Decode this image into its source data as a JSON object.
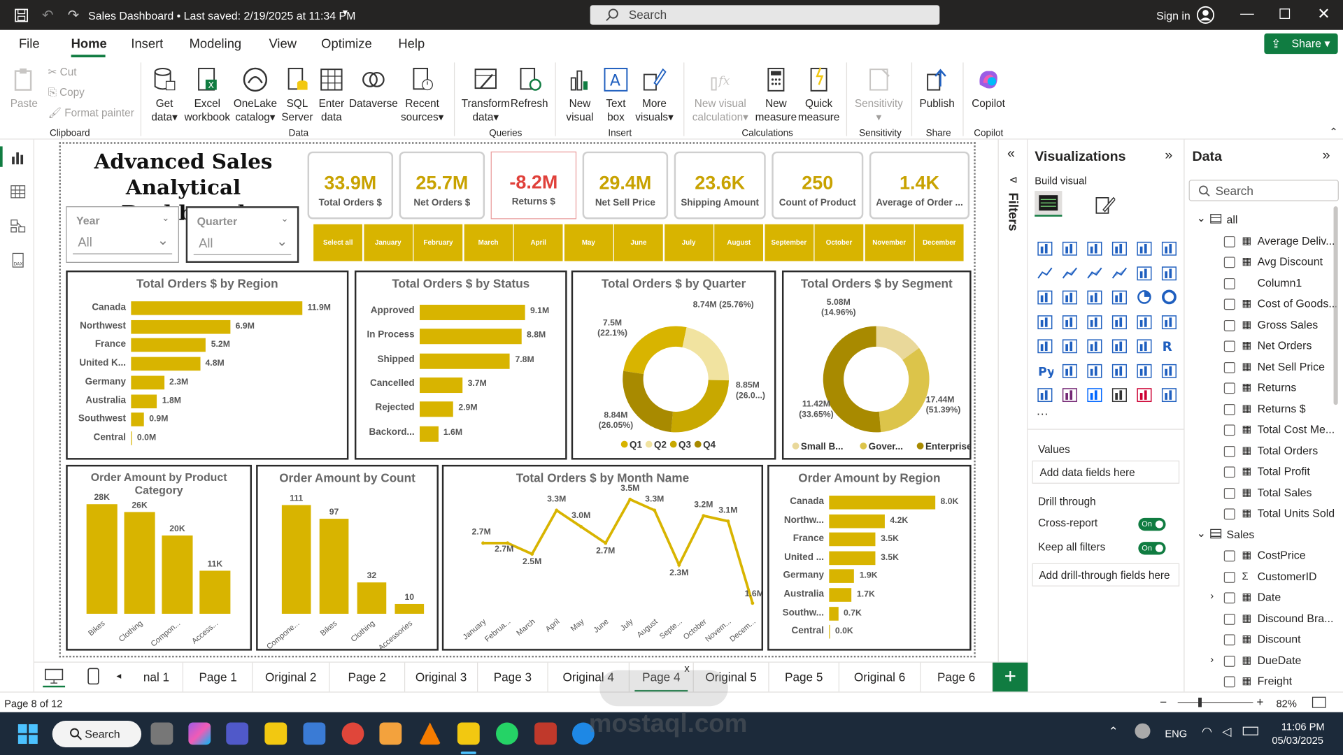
{
  "window": {
    "title": "Sales Dashboard • Last saved: 2/19/2025 at 11:34 PM",
    "search": "Search",
    "signin": "Sign in"
  },
  "menu": [
    "File",
    "Home",
    "Insert",
    "Modeling",
    "View",
    "Optimize",
    "Help"
  ],
  "share": "Share",
  "ribbon": {
    "clipboard": {
      "paste": "Paste",
      "cut": "Cut",
      "copy": "Copy",
      "format_painter": "Format painter",
      "group": "Clipboard"
    },
    "data": {
      "get_data": "Get data",
      "excel": "Excel workbook",
      "onelake": "OneLake catalog",
      "sql": "SQL Server",
      "enter": "Enter data",
      "dataverse": "Dataverse",
      "recent": "Recent sources",
      "group": "Data"
    },
    "queries": {
      "transform": "Transform data",
      "refresh": "Refresh",
      "group": "Queries"
    },
    "insert": {
      "new_visual": "New visual",
      "text_box": "Text box",
      "more_visuals": "More visuals",
      "group": "Insert"
    },
    "calc": {
      "new_visual_calc": "New visual calculation",
      "new_measure": "New measure",
      "quick_measure": "Quick measure",
      "group": "Calculations"
    },
    "sensitivity": {
      "label": "Sensitivity",
      "group": "Sensitivity"
    },
    "share": {
      "publish": "Publish",
      "group": "Share"
    },
    "copilot": {
      "label": "Copilot",
      "group": "Copilot"
    }
  },
  "report": {
    "title_line1": "Advanced Sales",
    "title_line2": "Analytical Dashboard",
    "slicers": [
      {
        "header": "Year",
        "value": "All"
      },
      {
        "header": "Quarter",
        "value": "All"
      }
    ],
    "kpis": [
      {
        "value": "33.9M",
        "label": "Total Orders $"
      },
      {
        "value": "25.7M",
        "label": "Net Orders $"
      },
      {
        "value": "-8.2M",
        "label": "Returns $"
      },
      {
        "value": "29.4M",
        "label": "Net Sell Price"
      },
      {
        "value": "23.6K",
        "label": "Shipping Amount"
      },
      {
        "value": "250",
        "label": "Count of Product"
      },
      {
        "value": "1.4K",
        "label": "Average of Order ..."
      }
    ],
    "months": [
      "Select all",
      "January",
      "February",
      "March",
      "April",
      "May",
      "June",
      "July",
      "August",
      "September",
      "October",
      "November",
      "December"
    ]
  },
  "chart_data": [
    {
      "type": "bar",
      "title": "Total Orders $ by Region",
      "orientation": "horizontal",
      "categories": [
        "Canada",
        "Northwest",
        "France",
        "United K...",
        "Germany",
        "Australia",
        "Southwest",
        "Central"
      ],
      "values": [
        11.9,
        6.9,
        5.2,
        4.8,
        2.3,
        1.8,
        0.9,
        0.0
      ],
      "labels": [
        "11.9M",
        "6.9M",
        "5.2M",
        "4.8M",
        "2.3M",
        "1.8M",
        "0.9M",
        "0.0M"
      ]
    },
    {
      "type": "bar",
      "title": "Total Orders $ by Status",
      "orientation": "horizontal",
      "categories": [
        "Approved",
        "In Process",
        "Shipped",
        "Cancelled",
        "Rejected",
        "Backord..."
      ],
      "values": [
        9.1,
        8.8,
        7.8,
        3.7,
        2.9,
        1.6
      ],
      "labels": [
        "9.1M",
        "8.8M",
        "7.8M",
        "3.7M",
        "2.9M",
        "1.6M"
      ]
    },
    {
      "type": "pie",
      "title": "Total Orders $ by Quarter",
      "categories": [
        "Q1",
        "Q2",
        "Q3",
        "Q4"
      ],
      "values": [
        8.74,
        7.5,
        8.84,
        8.85
      ],
      "labels": [
        "8.74M (25.76%)",
        "7.5M (22.1%)",
        "8.84M (26.05%)",
        "8.85M (26.0...)"
      ],
      "colors": [
        "#d8b400",
        "#f1e3a0",
        "#c8a800",
        "#a88a00"
      ]
    },
    {
      "type": "pie",
      "title": "Total Orders $ by Segment",
      "categories": [
        "Small B...",
        "Gover...",
        "Enterprise"
      ],
      "values": [
        5.08,
        11.42,
        17.44
      ],
      "labels": [
        "5.08M (14.96%)",
        "11.42M (33.65%)",
        "17.44M (51.39%)"
      ],
      "colors": [
        "#e9d89a",
        "#dcc44a",
        "#a88a00"
      ]
    },
    {
      "type": "bar",
      "title": "Order Amount by Product Category",
      "categories": [
        "Bikes",
        "Clothing",
        "Compon...",
        "Access..."
      ],
      "values": [
        28,
        26,
        20,
        11
      ],
      "labels": [
        "28K",
        "26K",
        "20K",
        "11K"
      ]
    },
    {
      "type": "bar",
      "title": "Order Amount by Count",
      "categories": [
        "Compone...",
        "Bikes",
        "Clothing",
        "Accessories"
      ],
      "values": [
        111,
        97,
        32,
        10
      ],
      "labels": [
        "111",
        "97",
        "32",
        "10"
      ]
    },
    {
      "type": "line",
      "title": "Total Orders $ by Month Name",
      "categories": [
        "January",
        "Februa...",
        "March",
        "April",
        "May",
        "June",
        "July",
        "August",
        "Septe...",
        "October",
        "Novem...",
        "Decem..."
      ],
      "values": [
        2.7,
        2.7,
        2.5,
        3.3,
        3.0,
        2.7,
        3.5,
        3.3,
        2.3,
        3.2,
        3.1,
        1.6
      ],
      "labels": [
        "2.7M",
        "2.7M",
        "2.5M",
        "3.3M",
        "3.0M",
        "2.7M",
        "3.5M",
        "3.3M",
        "2.3M",
        "3.2M",
        "3.1M",
        "1.6M"
      ]
    },
    {
      "type": "bar",
      "title": "Order Amount by Region",
      "orientation": "horizontal",
      "categories": [
        "Canada",
        "Northw...",
        "France",
        "United ...",
        "Germany",
        "Australia",
        "Southw...",
        "Central"
      ],
      "values": [
        8.0,
        4.2,
        3.5,
        3.5,
        1.9,
        1.7,
        0.7,
        0.0
      ],
      "labels": [
        "8.0K",
        "4.2K",
        "3.5K",
        "3.5K",
        "1.9K",
        "1.7K",
        "0.7K",
        "0.0K"
      ]
    }
  ],
  "filters": {
    "label": "Filters"
  },
  "viz": {
    "title": "Visualizations",
    "build": "Build visual",
    "values": "Values",
    "add_fields": "Add data fields here",
    "drill": "Drill through",
    "cross": "Cross-report",
    "keep": "Keep all filters",
    "on": "On",
    "add_drill": "Add drill-through fields here"
  },
  "data_pane": {
    "title": "Data",
    "search": "Search",
    "tables": [
      {
        "name": "all",
        "fields": [
          "Average Deliv...",
          "Avg Discount",
          "Column1",
          "Cost of Goods...",
          "Gross Sales",
          "Net Orders",
          "Net Sell Price",
          "Returns",
          "Returns $",
          "Total Cost Me...",
          "Total Orders",
          "Total Profit",
          "Total Sales",
          "Total Units Sold"
        ]
      },
      {
        "name": "Sales",
        "fields": [
          "CostPrice",
          "CustomerID",
          "Date",
          "Discound Bra...",
          "Discount",
          "DueDate",
          "Freight"
        ]
      }
    ]
  },
  "tabs": [
    "nal 1",
    "Page 1",
    "Original 2",
    "Page 2",
    "Original 3",
    "Page 3",
    "Original 4",
    "Page 4",
    "Original 5",
    "Page 5",
    "Original 6",
    "Page 6"
  ],
  "status": {
    "page": "Page 8 of 12",
    "zoom": "82%"
  },
  "taskbar": {
    "search": "Search",
    "lang": "ENG",
    "time": "11:06 PM",
    "date": "05/03/2025"
  },
  "watermark": "mostaql.com",
  "colors": {
    "accent": "#d8b400",
    "green": "#107c41"
  }
}
